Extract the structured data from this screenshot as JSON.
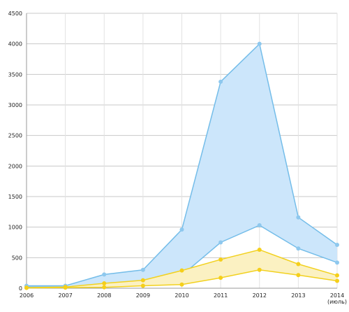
{
  "chart_data": {
    "type": "area",
    "x": [
      "2006",
      "2007",
      "2008",
      "2009",
      "2010",
      "2011",
      "2012",
      "2013",
      "2014"
    ],
    "x_sublabel": "(июль)",
    "ylim": [
      0,
      4500
    ],
    "yticks": [
      0,
      500,
      1000,
      1500,
      2000,
      2500,
      3000,
      3500,
      4000,
      4500
    ],
    "grid": true,
    "legend": "none",
    "bands": [
      {
        "color_fill": "#cce6fb",
        "color_line": "#74bde9",
        "color_marker": "#8ec8ee",
        "upper": [
          40,
          40,
          225,
          300,
          960,
          3380,
          4000,
          1160,
          710
        ],
        "lower": [
          20,
          20,
          50,
          100,
          210,
          750,
          1030,
          650,
          420
        ]
      },
      {
        "color_fill": "#fbf1c2",
        "color_line": "#f2d11f",
        "color_marker": "#f5cf1a",
        "upper": [
          10,
          20,
          80,
          130,
          290,
          470,
          630,
          395,
          210
        ],
        "lower": [
          5,
          10,
          15,
          40,
          60,
          170,
          300,
          215,
          120
        ]
      }
    ]
  }
}
